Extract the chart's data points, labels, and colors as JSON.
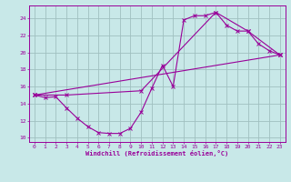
{
  "background_color": "#c8e8e8",
  "grid_color": "#a0c0c0",
  "line_color": "#990099",
  "xlabel": "Windchill (Refroidissement éolien,°C)",
  "xlim": [
    -0.5,
    23.5
  ],
  "ylim": [
    9.5,
    25.5
  ],
  "yticks": [
    10,
    12,
    14,
    16,
    18,
    20,
    22,
    24
  ],
  "xticks": [
    0,
    1,
    2,
    3,
    4,
    5,
    6,
    7,
    8,
    9,
    10,
    11,
    12,
    13,
    14,
    15,
    16,
    17,
    18,
    19,
    20,
    21,
    22,
    23
  ],
  "series1": [
    [
      0,
      15.0
    ],
    [
      1,
      14.7
    ],
    [
      2,
      14.8
    ],
    [
      3,
      13.5
    ],
    [
      4,
      12.3
    ],
    [
      5,
      11.3
    ],
    [
      6,
      10.6
    ],
    [
      7,
      10.5
    ],
    [
      8,
      10.5
    ],
    [
      9,
      11.1
    ],
    [
      10,
      13.0
    ],
    [
      11,
      15.8
    ],
    [
      12,
      18.5
    ],
    [
      13,
      16.0
    ],
    [
      14,
      23.8
    ],
    [
      15,
      24.3
    ],
    [
      16,
      24.3
    ],
    [
      17,
      24.7
    ],
    [
      18,
      23.2
    ],
    [
      19,
      22.5
    ],
    [
      20,
      22.5
    ],
    [
      21,
      21.0
    ],
    [
      22,
      20.2
    ],
    [
      23,
      19.7
    ]
  ],
  "series2": [
    [
      0,
      15.0
    ],
    [
      23,
      19.7
    ]
  ],
  "series3": [
    [
      0,
      15.0
    ],
    [
      3,
      15.0
    ],
    [
      10,
      15.5
    ],
    [
      17,
      24.7
    ],
    [
      20,
      22.5
    ],
    [
      23,
      19.7
    ]
  ]
}
